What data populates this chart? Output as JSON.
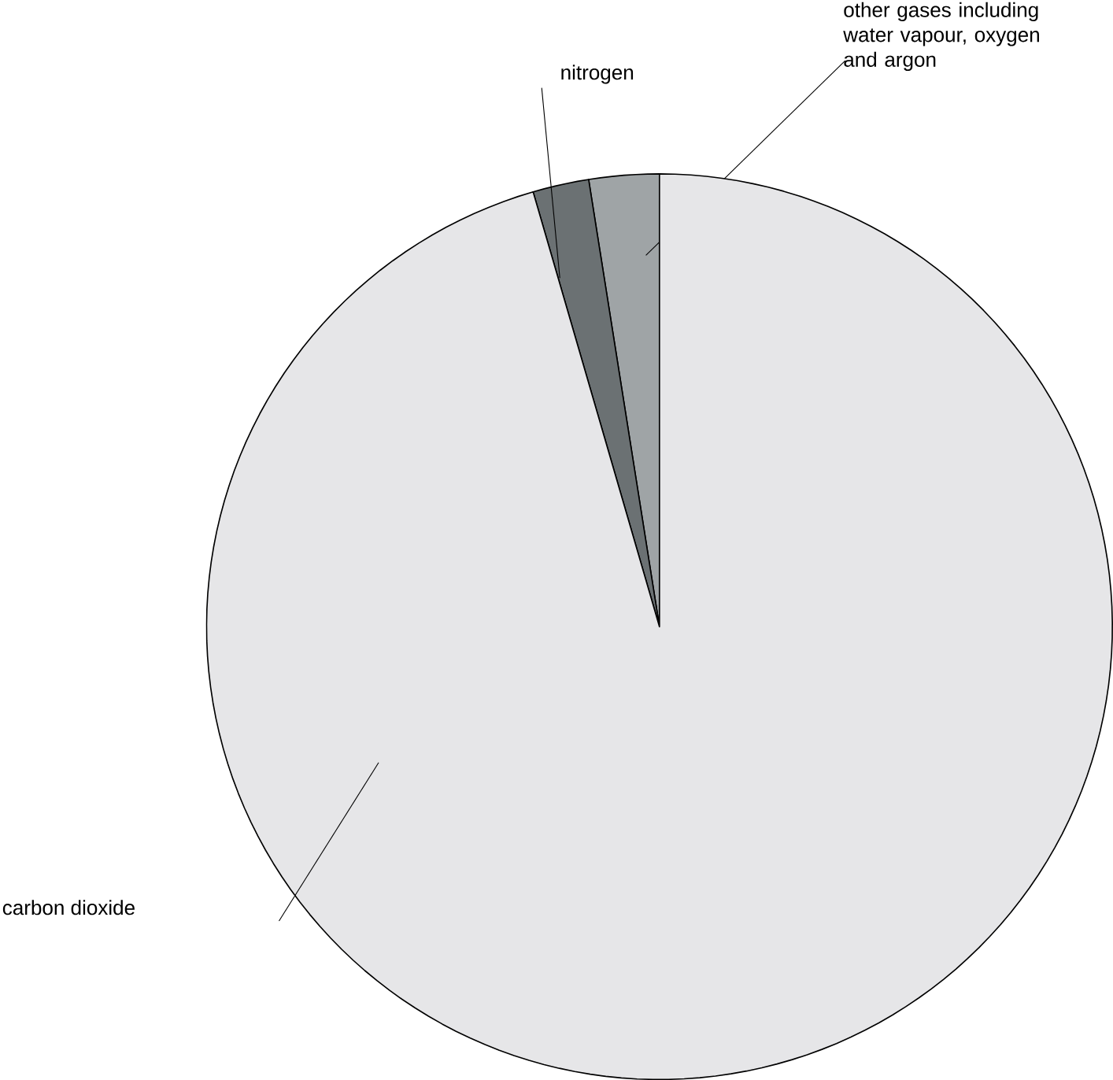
{
  "chart_data": {
    "type": "pie",
    "categories": [
      "other gases including water vapour, oxygen and argon",
      "nitrogen",
      "carbon dioxide"
    ],
    "values": [
      2.5,
      2.0,
      95.5
    ],
    "colors": [
      "#9fa4a6",
      "#6b7173",
      "#e6e6e8"
    ]
  }
}
